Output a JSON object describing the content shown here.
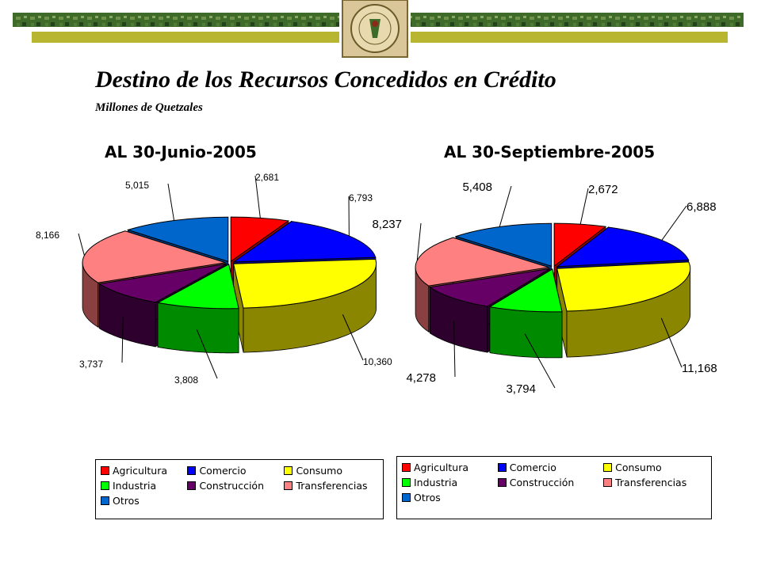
{
  "header": {
    "title": "Destino de los Recursos Concedidos en Crédito",
    "subtitle": "Millones de Quetzales",
    "logo": "superintendencia-de-bancos-seal",
    "logo_text": "SUPERINTENDENCIA DE BANCOS · GUATEMALA"
  },
  "legend_items": [
    {
      "label": "Agricultura",
      "color": "#ff0000"
    },
    {
      "label": "Comercio",
      "color": "#0000ff"
    },
    {
      "label": "Consumo",
      "color": "#ffff00"
    },
    {
      "label": "Industria",
      "color": "#00ff00"
    },
    {
      "label": "Construcción",
      "color": "#660066"
    },
    {
      "label": "Transferencias",
      "color": "#ff8080"
    },
    {
      "label": "Otros",
      "color": "#0066cc"
    }
  ],
  "chart_data": [
    {
      "type": "pie",
      "style": "3d",
      "title": "AL 30-Junio-2005",
      "categories": [
        "Agricultura",
        "Comercio",
        "Consumo",
        "Industria",
        "Construcción",
        "Transferencias",
        "Otros"
      ],
      "values": [
        2681,
        6793,
        10360,
        3808,
        3737,
        8166,
        5015
      ],
      "data_labels": [
        "2,681",
        "6,793",
        "10,360",
        "3,808",
        "3,737",
        "8,166",
        "5,015"
      ],
      "legend": "bottom"
    },
    {
      "type": "pie",
      "style": "3d",
      "title": "AL 30-Septiembre-2005",
      "categories": [
        "Agricultura",
        "Comercio",
        "Consumo",
        "Industria",
        "Construcción",
        "Transferencias",
        "Otros"
      ],
      "values": [
        2672,
        6888,
        11168,
        3794,
        4278,
        8237,
        5408
      ],
      "data_labels": [
        "2,672",
        "6,888",
        "11,168",
        "3,794",
        "4,278",
        "8,237",
        "5,408"
      ],
      "legend": "bottom"
    }
  ]
}
